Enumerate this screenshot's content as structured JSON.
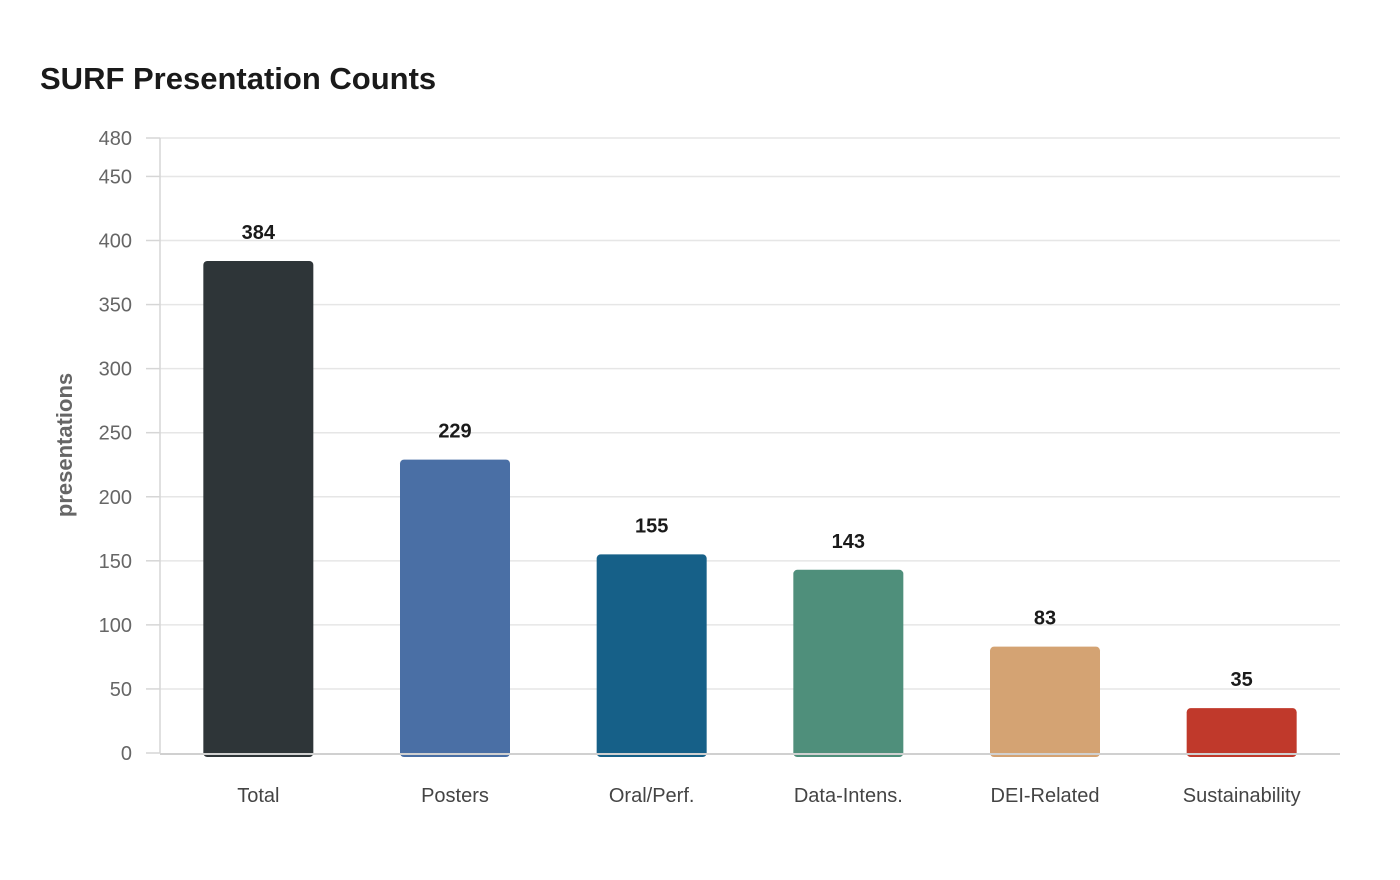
{
  "chart_data": {
    "type": "bar",
    "title": "SURF Presentation Counts",
    "xlabel": "",
    "ylabel": "presentations",
    "categories": [
      "Total",
      "Posters",
      "Oral/Perf.",
      "Data-Intens.",
      "DEI-Related",
      "Sustainability"
    ],
    "values": [
      384,
      229,
      155,
      143,
      83,
      35
    ],
    "colors": [
      "#2e3538",
      "#4a6fa5",
      "#166088",
      "#4f8f7b",
      "#d4a373",
      "#c0392b"
    ],
    "ylim": [
      0,
      480
    ],
    "yticks": [
      0,
      50,
      100,
      150,
      200,
      250,
      300,
      350,
      400,
      450,
      480
    ],
    "grid": true,
    "legend": "none",
    "data_labels": true
  }
}
